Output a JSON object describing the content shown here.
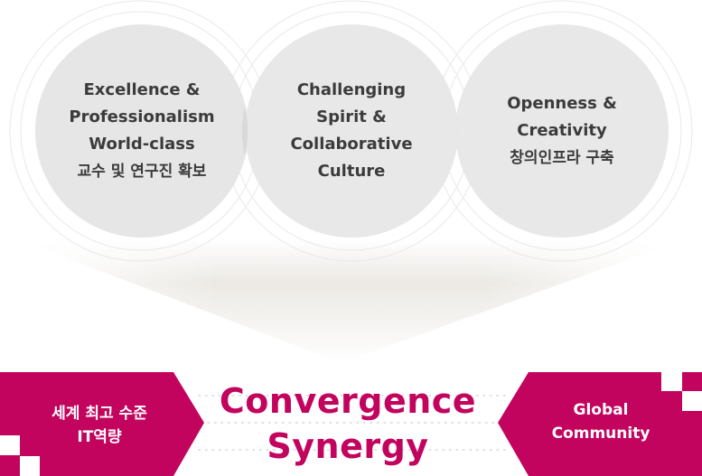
{
  "values": [
    {
      "lines": [
        "Excellence &",
        "Professionalism",
        "World-class"
      ],
      "korean": "교수 및 연구진 확보"
    },
    {
      "lines": [
        "Challenging",
        "Spirit &",
        "Collaborative",
        "Culture"
      ],
      "korean": ""
    },
    {
      "lines": [
        "Openness &",
        "Creativity"
      ],
      "korean": "창의인프라 구축"
    }
  ],
  "left_label": [
    "세계 최고 수준",
    "IT역량"
  ],
  "center_title": [
    "Convergence",
    "Synergy"
  ],
  "right_label": [
    "Global",
    "Community"
  ],
  "colors": {
    "accent": "#c2045e",
    "circle_fill": "#e6e6e6",
    "ring": "#e9e9e9",
    "text": "#3b3b3b",
    "funnel_gradient": [
      "#e8e6e1",
      "#ffffff"
    ]
  }
}
